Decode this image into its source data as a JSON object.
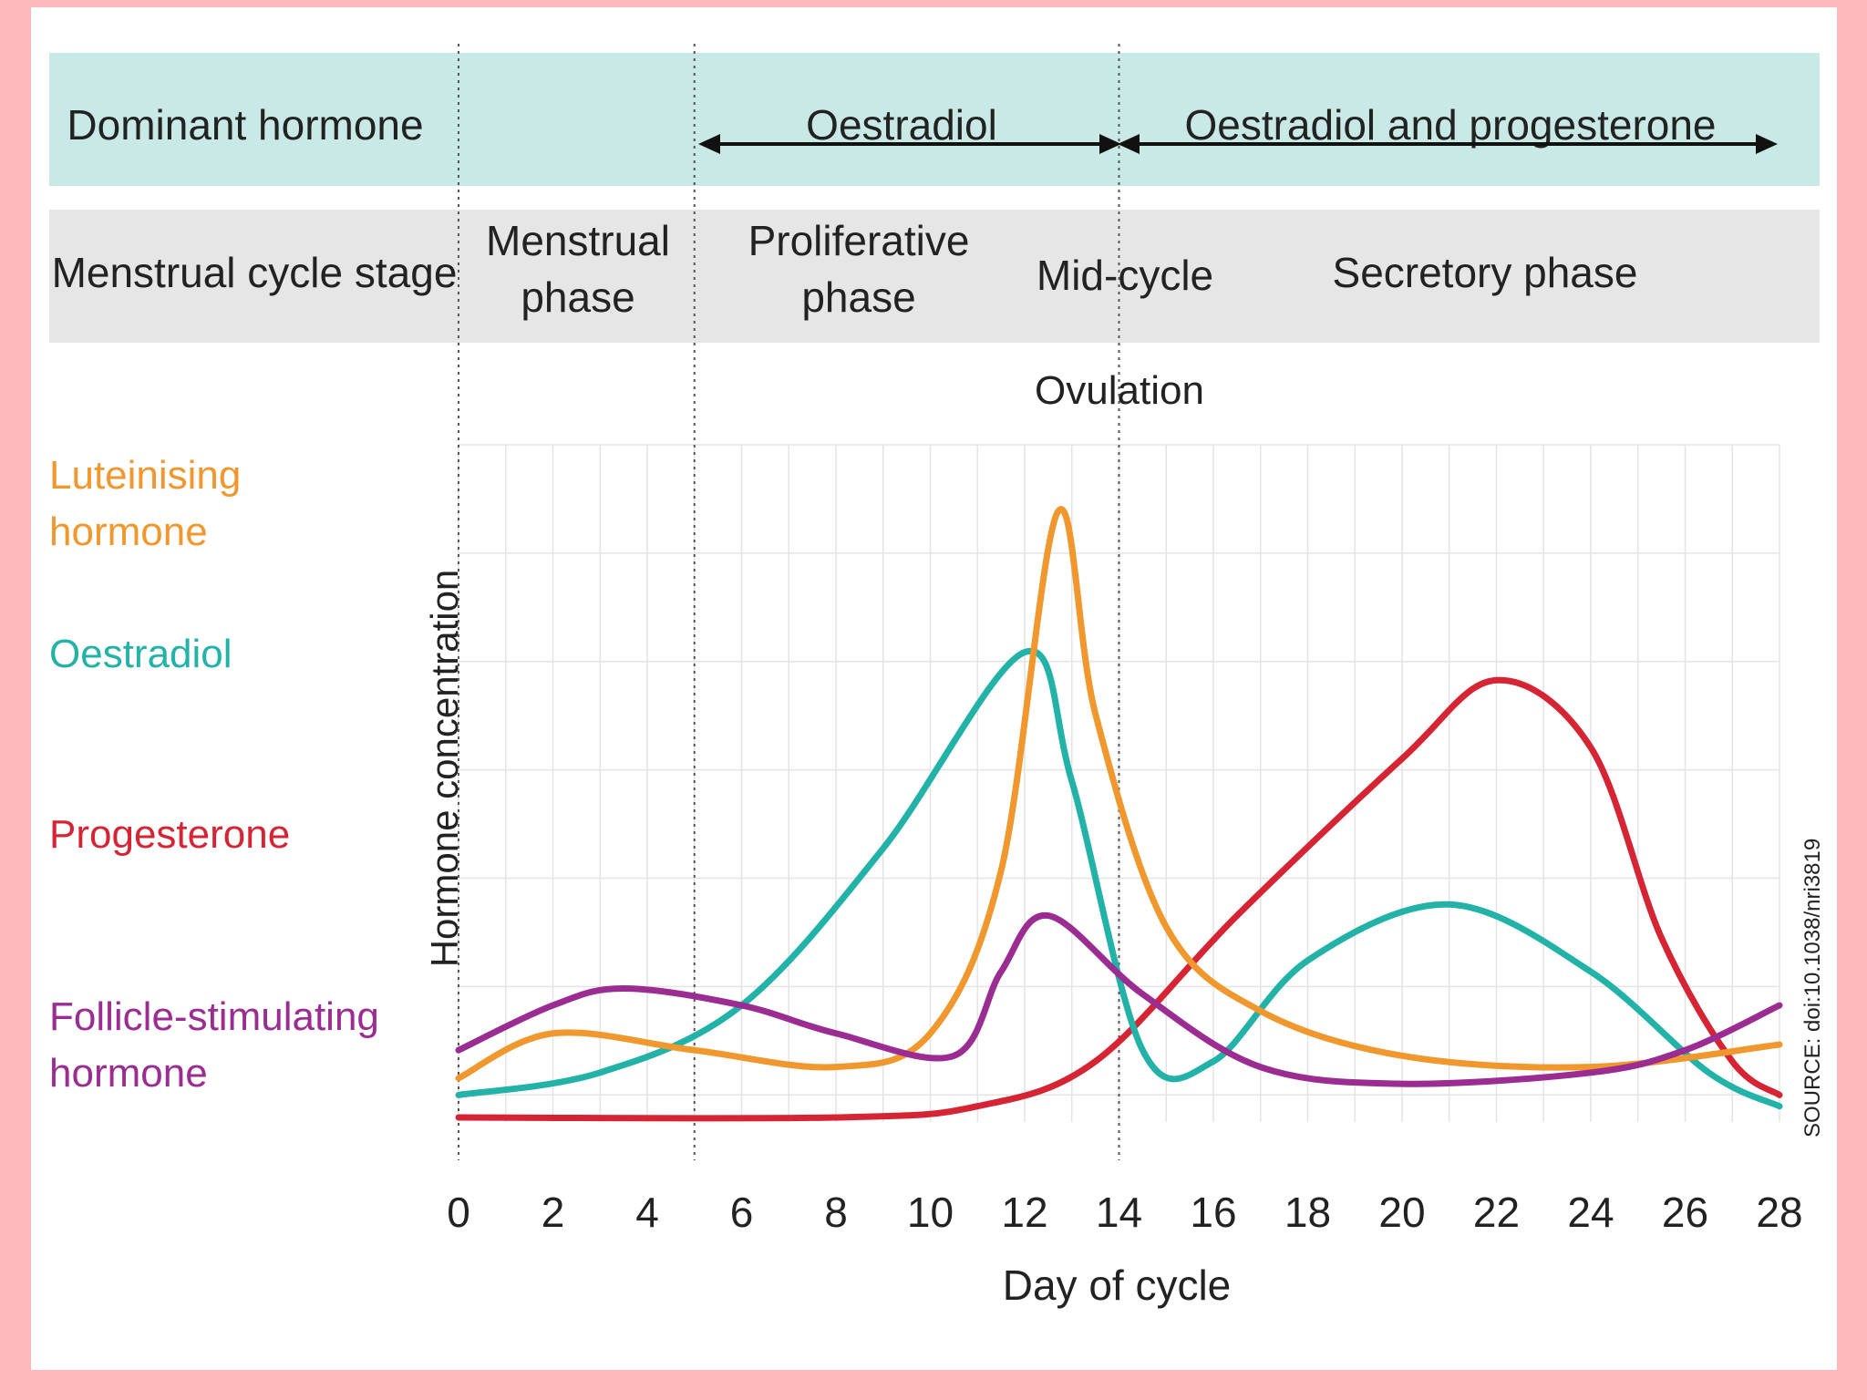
{
  "header": {
    "row1_title": "Dominant hormone",
    "row1_oestradiol": "Oestradiol",
    "row1_both": "Oestradiol and progesterone",
    "row2_title": "Menstrual cycle stage",
    "menstrual_line1": "Menstrual",
    "menstrual_line2": "phase",
    "proliferative_line1": "Proliferative",
    "proliferative_line2": "phase",
    "midcycle": "Mid-cycle",
    "secretory": "Secretory phase",
    "ovulation": "Ovulation"
  },
  "legend": {
    "lh_line1": "Luteinising",
    "lh_line2": "hormone",
    "oestradiol": "Oestradiol",
    "progesterone": "Progesterone",
    "fsh_line1": "Follicle-stimulating",
    "fsh_line2": "hormone"
  },
  "source": "SOURCE: doi:10.1038/nri3819",
  "colors": {
    "background_frame": "#fdb8bd",
    "row1_fill": "#c8e9e6",
    "row2_fill": "#e6e6e6",
    "lh": "#f0972e",
    "oestradiol": "#22b2a7",
    "progesterone": "#d52534",
    "fsh": "#9b2c92"
  },
  "chart_data": {
    "type": "line",
    "title": "",
    "xlabel": "Day of cycle",
    "ylabel": "Hormone concentration",
    "xlim": [
      0,
      28
    ],
    "ylim": [
      0,
      6
    ],
    "x_ticks": [
      "0",
      "2",
      "4",
      "6",
      "8",
      "10",
      "12",
      "14",
      "16",
      "18",
      "20",
      "22",
      "24",
      "26",
      "28"
    ],
    "grid": true,
    "phase_boundaries": [
      0,
      5,
      14
    ],
    "series": [
      {
        "name": "Luteinising hormone",
        "color_key": "lh",
        "points": [
          [
            0,
            0.35
          ],
          [
            2,
            0.75
          ],
          [
            5,
            0.6
          ],
          [
            8,
            0.45
          ],
          [
            10,
            0.75
          ],
          [
            11.5,
            2.2
          ],
          [
            12.7,
            5.4
          ],
          [
            13.5,
            3.6
          ],
          [
            15,
            1.7
          ],
          [
            17,
            0.95
          ],
          [
            20,
            0.55
          ],
          [
            24,
            0.45
          ],
          [
            28,
            0.65
          ]
        ]
      },
      {
        "name": "Oestradiol",
        "color_key": "oestradiol",
        "points": [
          [
            0,
            0.2
          ],
          [
            3,
            0.4
          ],
          [
            6,
            1.0
          ],
          [
            9,
            2.4
          ],
          [
            12,
            4.15
          ],
          [
            13,
            3.0
          ],
          [
            14.5,
            0.6
          ],
          [
            16,
            0.5
          ],
          [
            18,
            1.4
          ],
          [
            21,
            1.9
          ],
          [
            24,
            1.3
          ],
          [
            26.5,
            0.4
          ],
          [
            28,
            0.1
          ]
        ]
      },
      {
        "name": "Progesterone",
        "color_key": "progesterone",
        "points": [
          [
            0,
            0.0
          ],
          [
            8,
            0.0
          ],
          [
            11,
            0.1
          ],
          [
            13.5,
            0.5
          ],
          [
            16.5,
            1.8
          ],
          [
            20,
            3.2
          ],
          [
            22,
            3.9
          ],
          [
            24,
            3.3
          ],
          [
            25.5,
            1.6
          ],
          [
            27,
            0.5
          ],
          [
            28,
            0.2
          ]
        ]
      },
      {
        "name": "Follicle-stimulating hormone",
        "color_key": "fsh",
        "points": [
          [
            0,
            0.6
          ],
          [
            2,
            1.0
          ],
          [
            3.5,
            1.15
          ],
          [
            6,
            1.0
          ],
          [
            8,
            0.75
          ],
          [
            10.5,
            0.55
          ],
          [
            11.5,
            1.3
          ],
          [
            12.5,
            1.8
          ],
          [
            14.5,
            1.1
          ],
          [
            17,
            0.45
          ],
          [
            20,
            0.3
          ],
          [
            24,
            0.4
          ],
          [
            26,
            0.6
          ],
          [
            28,
            1.0
          ]
        ]
      }
    ]
  }
}
